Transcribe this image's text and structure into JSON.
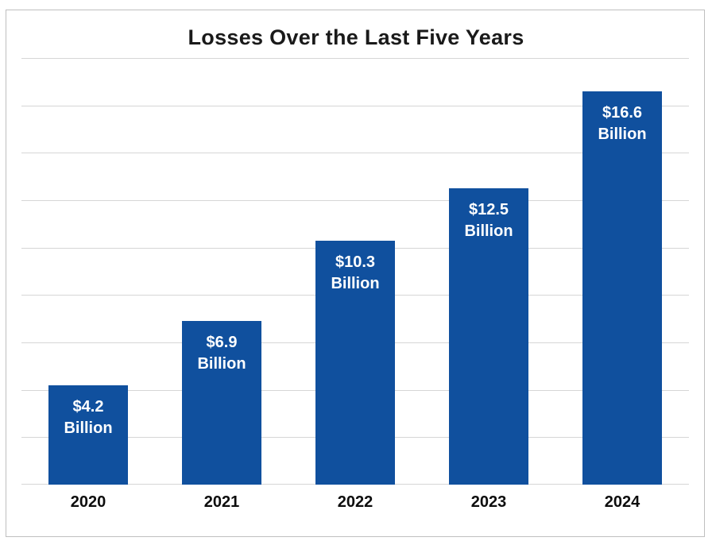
{
  "chart_data": {
    "type": "bar",
    "title": "Losses Over the Last Five Years",
    "categories": [
      "2020",
      "2021",
      "2022",
      "2023",
      "2024"
    ],
    "values": [
      4.2,
      6.9,
      10.3,
      12.5,
      16.6
    ],
    "bar_labels": [
      {
        "line1": "$4.2",
        "line2": "Billion"
      },
      {
        "line1": "$6.9",
        "line2": "Billion"
      },
      {
        "line1": "$10.3",
        "line2": "Billion"
      },
      {
        "line1": "$12.5",
        "line2": "Billion"
      },
      {
        "line1": "$16.6",
        "line2": "Billion"
      }
    ],
    "xlabel": "",
    "ylabel": "",
    "ylim": [
      0,
      18
    ],
    "gridline_step": 2,
    "grid": true,
    "legend": "none",
    "y_axis_tick_labels_visible": false,
    "colors": {
      "bar": "#10509E",
      "bar_label_text": "#FFFFFF",
      "gridline": "#D6D6D6",
      "title_text": "#1A1A1A",
      "axis_label_text": "#0D0D0D",
      "background": "#FFFFFF",
      "border": "#BFBFBF"
    }
  }
}
